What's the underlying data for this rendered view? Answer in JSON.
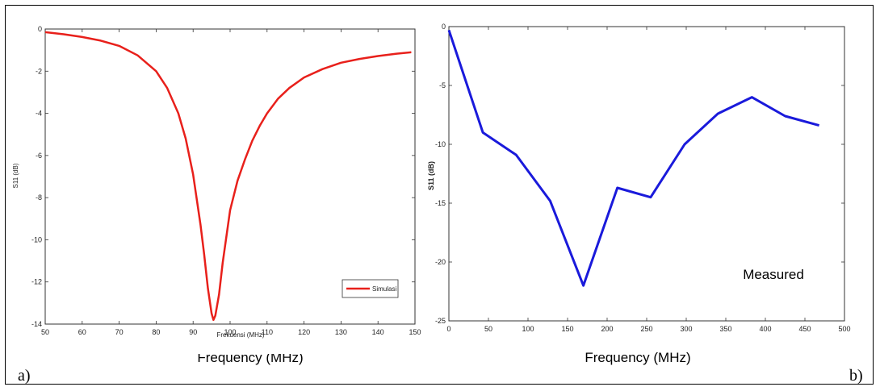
{
  "panel_labels": {
    "left": "a)",
    "right": "b)"
  },
  "colors": {
    "simulated": "#e8201b",
    "measured": "#1a1adb"
  },
  "chart_data": [
    {
      "type": "line",
      "xlabel": "Frekuensi (MHz)",
      "ylabel": "S11 (dB)",
      "xlim": [
        50,
        150
      ],
      "ylim": [
        -14,
        0
      ],
      "xticks": [
        "50",
        "60",
        "70",
        "80",
        "90",
        "100",
        "110",
        "120",
        "130",
        "140",
        "150"
      ],
      "yticks": [
        "0",
        "-2",
        "-4",
        "-6",
        "-8",
        "-10",
        "-12",
        "-14"
      ],
      "grid": false,
      "legend": {
        "position": "bottom-right",
        "entries": [
          "Simulasi"
        ]
      },
      "overlay_caption": "Frequency (MHz)",
      "series": [
        {
          "name": "Simulasi",
          "x": [
            50,
            55,
            60,
            65,
            70,
            75,
            80,
            83,
            86,
            88,
            90,
            92,
            93,
            94,
            95,
            95.5,
            96,
            97,
            98,
            100,
            102,
            104,
            106,
            108,
            110,
            113,
            116,
            120,
            125,
            130,
            135,
            140,
            145,
            149
          ],
          "y": [
            -0.15,
            -0.25,
            -0.38,
            -0.55,
            -0.8,
            -1.25,
            -2.0,
            -2.8,
            -4.0,
            -5.2,
            -6.9,
            -9.3,
            -10.7,
            -12.3,
            -13.5,
            -13.8,
            -13.6,
            -12.6,
            -11.1,
            -8.6,
            -7.2,
            -6.2,
            -5.3,
            -4.6,
            -4.0,
            -3.3,
            -2.8,
            -2.3,
            -1.9,
            -1.6,
            -1.42,
            -1.28,
            -1.17,
            -1.1
          ]
        }
      ]
    },
    {
      "type": "line",
      "xlabel": "Frequency (MHz)",
      "ylabel": "S11 (dB)",
      "xlim": [
        0,
        500
      ],
      "ylim": [
        -25,
        0
      ],
      "xticks": [
        "0",
        "50",
        "100",
        "150",
        "200",
        "250",
        "300",
        "350",
        "400",
        "450",
        "500"
      ],
      "yticks": [
        "0",
        "-5",
        "-10",
        "-15",
        "-20",
        "-25"
      ],
      "grid": false,
      "annotation": "Measured",
      "series": [
        {
          "x": [
            0,
            43,
            85,
            128,
            170,
            213,
            255,
            298,
            340,
            383,
            425,
            468
          ],
          "y": [
            -0.3,
            -9.0,
            -10.9,
            -14.8,
            -22.0,
            -13.7,
            -14.5,
            -10.0,
            -7.4,
            -6.0,
            -7.6,
            -8.4
          ]
        }
      ]
    }
  ]
}
